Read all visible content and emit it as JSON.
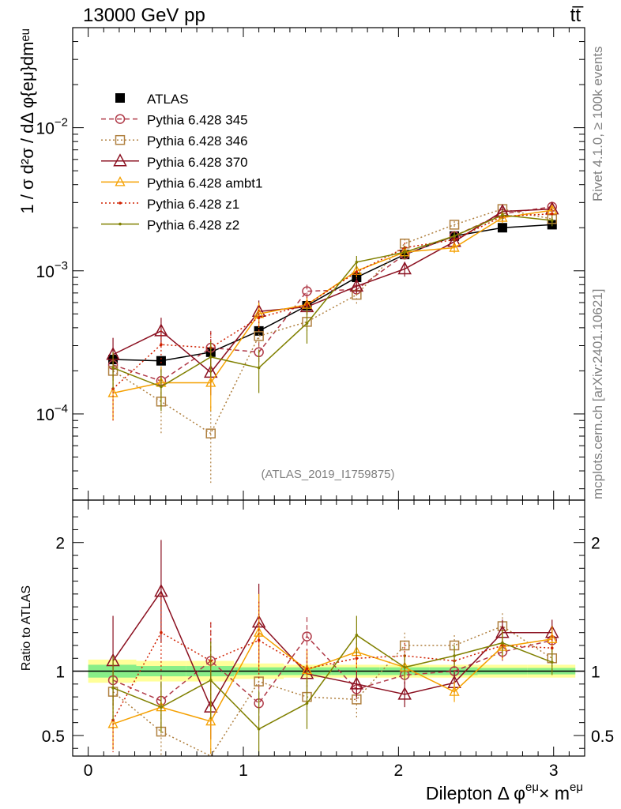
{
  "header": {
    "left_title": "13000 GeV pp",
    "right_title": "tt̅"
  },
  "side_labels": {
    "rivet": "Rivet 4.1.0, ≥ 100k events",
    "mcplots": "mcplots.cern.ch [arXiv:2401.10621]"
  },
  "analysis_tag": "(ATLAS_2019_I1759875)",
  "chart_data": [
    {
      "type": "line",
      "panel": "main",
      "yscale": "log",
      "ylabel": "1 / σ  d²σ / dΔ φ{eμ}dmᵉᵘ",
      "ylim": [
        2.5e-05,
        0.05
      ],
      "xlim": [
        -0.1,
        3.2
      ],
      "y_ticks": [
        {
          "v": 0.0001,
          "base": "10",
          "exp": "−4"
        },
        {
          "v": 0.001,
          "base": "10",
          "exp": "−3"
        },
        {
          "v": 0.01,
          "base": "10",
          "exp": "−2"
        }
      ],
      "x": [
        0.16,
        0.47,
        0.79,
        1.1,
        1.41,
        1.73,
        2.04,
        2.36,
        2.67,
        2.99
      ],
      "series": [
        {
          "name": "ATLAS",
          "color": "#000000",
          "marker": "square-filled",
          "dash": "none",
          "values": [
            0.00024,
            0.000235,
            0.00027,
            0.00038,
            0.00057,
            0.0009,
            0.0013,
            0.00175,
            0.002,
            0.0021
          ],
          "err": [
            1.5e-05,
            1e-05,
            1.5e-05,
            2e-05,
            3e-05,
            4e-05,
            5e-05,
            6e-05,
            7e-05,
            7e-05
          ]
        },
        {
          "name": "Pythia 6.428 345",
          "color": "#b03a48",
          "marker": "circle",
          "dash": "6,4",
          "values": [
            0.00022,
            0.00017,
            0.00029,
            0.00027,
            0.00072,
            0.00074,
            0.0013,
            0.00175,
            0.0025,
            0.0028
          ],
          "err": [
            5e-05,
            4e-05,
            9e-05,
            5e-05,
            8e-05,
            6e-05,
            0.0001,
            0.0001,
            0.0002,
            0.0002
          ]
        },
        {
          "name": "Pythia 6.428 346",
          "color": "#b08040",
          "marker": "square",
          "dash": "2,3",
          "values": [
            0.0002,
            0.000122,
            7.3e-05,
            0.00035,
            0.00044,
            0.00068,
            0.00155,
            0.0021,
            0.0027,
            0.0023
          ],
          "err": [
            6e-05,
            5e-05,
            4e-05,
            9e-05,
            6e-05,
            0.0001,
            0.00012,
            0.00012,
            0.0002,
            0.0002
          ]
        },
        {
          "name": "Pythia 6.428 370",
          "color": "#8b1020",
          "marker": "triangle",
          "dash": "none",
          "values": [
            0.00026,
            0.00038,
            0.000195,
            0.00052,
            0.00056,
            0.00078,
            0.00103,
            0.0016,
            0.0026,
            0.0027
          ],
          "err": [
            8e-05,
            9e-05,
            6e-05,
            0.0001,
            7e-05,
            8e-05,
            0.00012,
            0.00012,
            0.0002,
            0.0002
          ]
        },
        {
          "name": "Pythia 6.428 ambt1",
          "color": "#f5a000",
          "marker": "triangle-small",
          "dash": "none",
          "values": [
            0.00014,
            0.000165,
            0.000165,
            0.0005,
            0.00058,
            0.001,
            0.00135,
            0.00145,
            0.00235,
            0.00265
          ],
          "err": [
            5e-05,
            5e-05,
            6e-05,
            0.0001,
            7e-05,
            0.0001,
            0.00012,
            0.00012,
            0.0002,
            0.0002
          ]
        },
        {
          "name": "Pythia 6.428 z1",
          "color": "#d02000",
          "marker": "dot",
          "dash": "2,3",
          "values": [
            0.00015,
            0.000305,
            0.00029,
            0.00047,
            0.00058,
            0.00098,
            0.00145,
            0.00165,
            0.0024,
            0.0025
          ],
          "err": [
            6e-05,
            8e-05,
            8e-05,
            0.0001,
            8e-05,
            0.0001,
            0.00012,
            0.00012,
            0.0002,
            0.0002
          ]
        },
        {
          "name": "Pythia 6.428 z2",
          "color": "#808000",
          "marker": "dot",
          "dash": "none",
          "values": [
            0.00021,
            0.000155,
            0.00025,
            0.00021,
            0.00043,
            0.00115,
            0.00135,
            0.00175,
            0.00245,
            0.00225
          ],
          "err": [
            6e-05,
            5e-05,
            7e-05,
            7e-05,
            0.00012,
            0.00012,
            0.00015,
            0.00015,
            0.0002,
            0.0002
          ]
        }
      ]
    },
    {
      "type": "line",
      "panel": "ratio",
      "yscale": "linear",
      "ylabel": "Ratio to ATLAS",
      "xlabel_main": "Dilepton Δ φ",
      "xlabel_sup1": "eμ",
      "xlabel_mid": "× m",
      "xlabel_sup2": "eμ",
      "ylim": [
        0.34,
        2.33
      ],
      "xlim": [
        -0.1,
        3.2
      ],
      "y_ticks": [
        0.5,
        1,
        2
      ],
      "y_tick_labels": [
        "0.5",
        "1",
        "2"
      ],
      "x_ticks": [
        0,
        1,
        2,
        3
      ],
      "x_tick_labels": [
        "0",
        "1",
        "2",
        "3"
      ],
      "x": [
        0.16,
        0.47,
        0.79,
        1.1,
        1.41,
        1.73,
        2.04,
        2.36,
        2.67,
        2.99
      ],
      "band_edges": [
        0,
        0.31,
        0.63,
        0.94,
        1.26,
        1.57,
        1.88,
        2.2,
        2.51,
        2.83,
        3.14
      ],
      "band_inner": [
        0.05,
        0.04,
        0.04,
        0.03,
        0.03,
        0.03,
        0.03,
        0.03,
        0.025,
        0.025
      ],
      "band_outer": [
        0.09,
        0.08,
        0.08,
        0.06,
        0.05,
        0.05,
        0.05,
        0.05,
        0.05,
        0.05
      ],
      "series": [
        {
          "name": "Pythia 6.428 345",
          "color": "#b03a48",
          "marker": "circle",
          "dash": "6,4",
          "values": [
            0.93,
            0.77,
            1.08,
            0.75,
            1.27,
            0.86,
            0.97,
            1.0,
            1.15,
            1.24
          ],
          "err": [
            0.2,
            0.2,
            0.3,
            0.15,
            0.15,
            0.08,
            0.09,
            0.07,
            0.09,
            0.09
          ]
        },
        {
          "name": "Pythia 6.428 346",
          "color": "#b08040",
          "marker": "square",
          "dash": "2,3",
          "values": [
            0.84,
            0.53,
            0.25,
            0.92,
            0.8,
            0.78,
            1.2,
            1.2,
            1.35,
            1.1
          ],
          "err": [
            0.25,
            0.2,
            0.15,
            0.25,
            0.12,
            0.15,
            0.1,
            0.08,
            0.1,
            0.1
          ]
        },
        {
          "name": "Pythia 6.428 370",
          "color": "#8b1020",
          "marker": "triangle",
          "dash": "none",
          "values": [
            1.08,
            1.62,
            0.72,
            1.38,
            0.98,
            0.9,
            0.82,
            0.91,
            1.3,
            1.3
          ],
          "err": [
            0.35,
            0.4,
            0.25,
            0.3,
            0.15,
            0.1,
            0.1,
            0.08,
            0.1,
            0.1
          ]
        },
        {
          "name": "Pythia 6.428 ambt1",
          "color": "#f5a000",
          "marker": "triangle-small",
          "dash": "none",
          "values": [
            0.59,
            0.72,
            0.61,
            1.3,
            1.01,
            1.15,
            1.03,
            0.84,
            1.19,
            1.25
          ],
          "err": [
            0.2,
            0.2,
            0.25,
            0.3,
            0.15,
            0.12,
            0.1,
            0.08,
            0.1,
            0.1
          ]
        },
        {
          "name": "Pythia 6.428 z1",
          "color": "#d02000",
          "marker": "dot",
          "dash": "2,3",
          "values": [
            0.62,
            1.3,
            1.08,
            1.24,
            1.02,
            1.1,
            1.12,
            1.08,
            1.2,
            1.18
          ],
          "err": [
            0.25,
            0.3,
            0.3,
            0.3,
            0.15,
            0.12,
            0.1,
            0.08,
            0.1,
            0.1
          ]
        },
        {
          "name": "Pythia 6.428 z2",
          "color": "#808000",
          "marker": "dot",
          "dash": "none",
          "values": [
            0.87,
            0.72,
            0.93,
            0.55,
            0.75,
            1.28,
            1.03,
            1.12,
            1.22,
            1.07
          ],
          "err": [
            0.25,
            0.2,
            0.3,
            0.3,
            0.2,
            0.15,
            0.1,
            0.08,
            0.1,
            0.1
          ]
        }
      ]
    }
  ]
}
